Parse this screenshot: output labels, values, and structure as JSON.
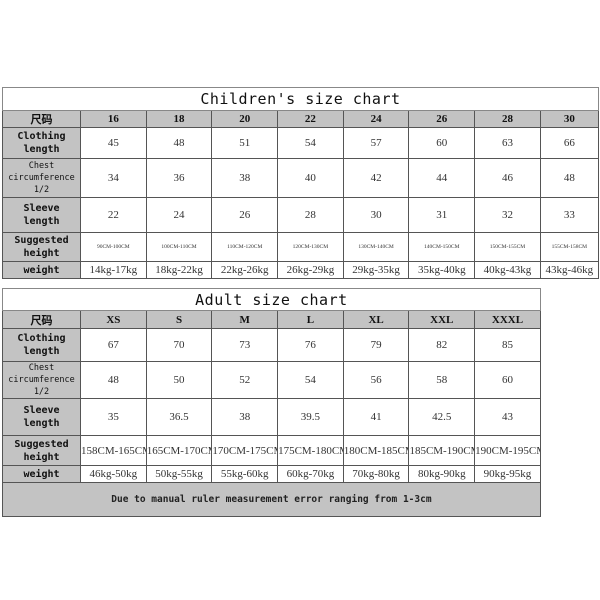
{
  "children": {
    "title": "Children's size chart",
    "size_label": "尺码",
    "sizes": [
      "16",
      "18",
      "20",
      "22",
      "24",
      "26",
      "28",
      "30"
    ],
    "rows": [
      {
        "label": "Clothing length",
        "values": [
          "45",
          "48",
          "51",
          "54",
          "57",
          "60",
          "63",
          "66"
        ]
      },
      {
        "label": "Chest circumference 1/2",
        "values": [
          "34",
          "36",
          "38",
          "40",
          "42",
          "44",
          "46",
          "48"
        ]
      },
      {
        "label": "Sleeve length",
        "values": [
          "22",
          "24",
          "26",
          "28",
          "30",
          "31",
          "32",
          "33"
        ]
      },
      {
        "label": "Suggested height",
        "values": [
          "90CM-100CM",
          "100CM-110CM",
          "110CM-120CM",
          "120CM-130CM",
          "130CM-140CM",
          "140CM-150CM",
          "150CM-155CM",
          "155CM-158CM"
        ]
      },
      {
        "label": "weight",
        "values": [
          "14kg-17kg",
          "18kg-22kg",
          "22kg-26kg",
          "26kg-29kg",
          "29kg-35kg",
          "35kg-40kg",
          "40kg-43kg",
          "43kg-46kg"
        ]
      }
    ]
  },
  "adult": {
    "title": "Adult size chart",
    "size_label": "尺码",
    "sizes": [
      "XS",
      "S",
      "M",
      "L",
      "XL",
      "XXL",
      "XXXL"
    ],
    "rows": [
      {
        "label": "Clothing length",
        "values": [
          "67",
          "70",
          "73",
          "76",
          "79",
          "82",
          "85"
        ]
      },
      {
        "label": "Chest circumference 1/2",
        "values": [
          "48",
          "50",
          "52",
          "54",
          "56",
          "58",
          "60"
        ]
      },
      {
        "label": "Sleeve length",
        "values": [
          "35",
          "36.5",
          "38",
          "39.5",
          "41",
          "42.5",
          "43"
        ]
      },
      {
        "label": "Suggested height",
        "values": [
          "158CM-165CM",
          "165CM-170CM",
          "170CM-175CM",
          "175CM-180CM",
          "180CM-185CM",
          "185CM-190CM",
          "190CM-195CM"
        ]
      },
      {
        "label": "weight",
        "values": [
          "46kg-50kg",
          "50kg-55kg",
          "55kg-60kg",
          "60kg-70kg",
          "70kg-80kg",
          "80kg-90kg",
          "90kg-95kg"
        ]
      }
    ],
    "note": "Due to manual ruler measurement error ranging from 1-3cm"
  },
  "colors": {
    "header_gray": "#c3c3c3",
    "border": "#555555"
  }
}
